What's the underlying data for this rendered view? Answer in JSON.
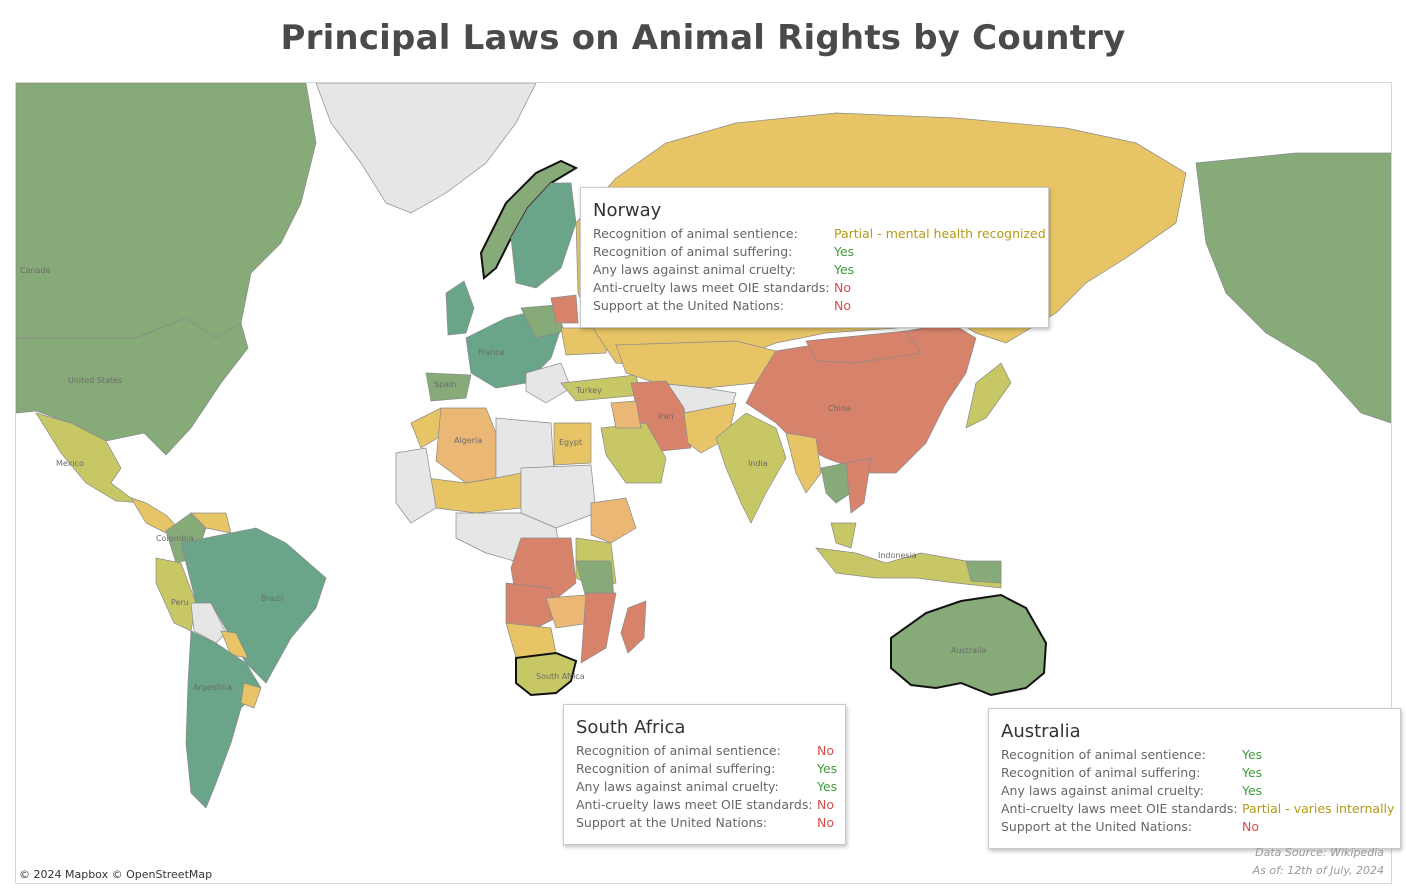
{
  "title": "Principal Laws on Animal Rights by Country",
  "colors": {
    "strong": "#6aa58a",
    "good": "#86ab78",
    "moderate": "#c7c766",
    "weak_partial": "#e7c466",
    "weak": "#eab874",
    "poor": "#d7836c",
    "no_data": "#e6e6e6",
    "ocean": "#ffffff",
    "yes": "#3f9c3f",
    "no": "#d64d4d",
    "partial": "#b39a16"
  },
  "map_labels": [
    "Canada",
    "United States",
    "Mexico",
    "Colombia",
    "Brazil",
    "Peru",
    "Argentina",
    "Spain",
    "France",
    "Turkey",
    "Algeria",
    "Egypt",
    "Iran",
    "India",
    "China",
    "Indonesia",
    "Australia",
    "South Africa"
  ],
  "tooltips": [
    {
      "id": "norway",
      "country": "Norway",
      "rows": [
        {
          "label": "Recognition of animal sentience:",
          "value": "Partial - mental health recognized",
          "status": "partial"
        },
        {
          "label": "Recognition of animal suffering:",
          "value": "Yes",
          "status": "yes"
        },
        {
          "label": "Any laws against animal cruelty:",
          "value": "Yes",
          "status": "yes"
        },
        {
          "label": "Anti-cruelty laws meet OIE standards:",
          "value": "No",
          "status": "no"
        },
        {
          "label": "Support at the United Nations:",
          "value": "No",
          "status": "no"
        }
      ]
    },
    {
      "id": "south-africa",
      "country": "South Africa",
      "rows": [
        {
          "label": "Recognition of animal sentience:",
          "value": "No",
          "status": "no"
        },
        {
          "label": "Recognition of animal suffering:",
          "value": "Yes",
          "status": "yes"
        },
        {
          "label": "Any laws against animal cruelty:",
          "value": "Yes",
          "status": "yes"
        },
        {
          "label": "Anti-cruelty laws meet OIE standards:",
          "value": "No",
          "status": "no"
        },
        {
          "label": "Support at the United Nations:",
          "value": "No",
          "status": "no"
        }
      ]
    },
    {
      "id": "australia",
      "country": "Australia",
      "rows": [
        {
          "label": "Recognition of animal sentience:",
          "value": "Yes",
          "status": "yes"
        },
        {
          "label": "Recognition of animal suffering:",
          "value": "Yes",
          "status": "yes"
        },
        {
          "label": "Any laws against animal cruelty:",
          "value": "Yes",
          "status": "yes"
        },
        {
          "label": "Anti-cruelty laws meet OIE standards:",
          "value": "Partial - varies internally",
          "status": "partial"
        },
        {
          "label": "Support at the United Nations:",
          "value": "No",
          "status": "no"
        }
      ]
    }
  ],
  "attribution": "© 2024 Mapbox  © OpenStreetMap",
  "source": {
    "line1": "Data Source: Wikipedia",
    "line2": "As of: 12th of July, 2024"
  }
}
